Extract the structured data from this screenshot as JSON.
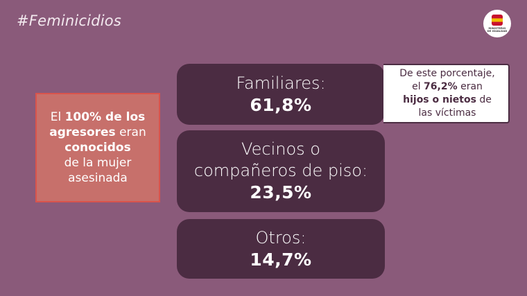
{
  "header": {
    "hashtag": "#Feminicidios"
  },
  "logo": {
    "line1": "MINISTERIO",
    "line2": "DE IGUALDAD"
  },
  "left_box": {
    "prefix": "El",
    "bold1": "100% de los",
    "bold2": "agresores",
    "mid": "eran",
    "bold3": "conocidos",
    "line4": "de la mujer",
    "line5": "asesinada"
  },
  "cards": [
    {
      "label": "Familiares:",
      "value": "61,8%"
    },
    {
      "label_line1": "Vecinos o",
      "label_line2": "compañeros de piso:",
      "value": "23,5%"
    },
    {
      "label": "Otros:",
      "value": "14,7%"
    }
  ],
  "note": {
    "line1": "De este porcentaje,",
    "prefix2": "el",
    "bold2": "76,2%",
    "suffix2": "eran",
    "bold3": "hijos o nietos",
    "suffix3": "de",
    "line4": "las víctimas"
  },
  "colors": {
    "background": "#8a5a7a",
    "card": "#4b2c42",
    "left_box": "#c7706b",
    "left_box_border": "#d9544c",
    "note_text": "#4b2c42"
  }
}
